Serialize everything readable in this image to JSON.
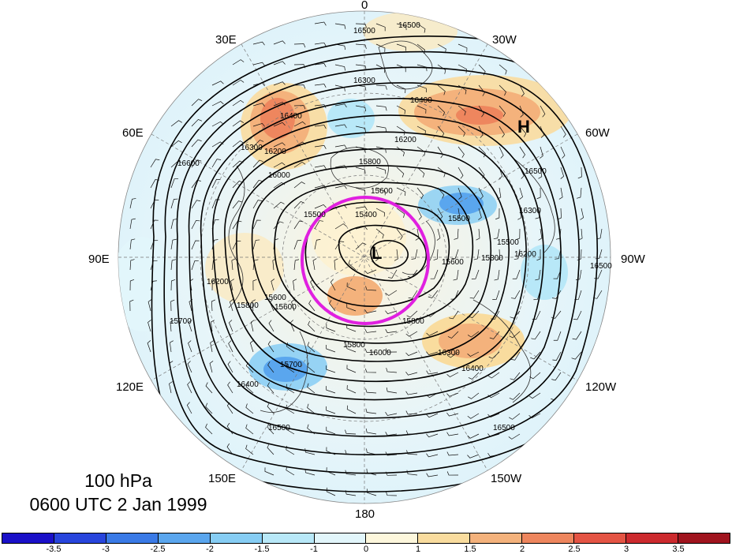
{
  "plot": {
    "level": "100 hPa",
    "valid_time": "0600 UTC 2 Jan 1999"
  },
  "longitude_labels": {
    "lon_0": "0",
    "lon_30e": "30E",
    "lon_30w": "30W",
    "lon_60e": "60E",
    "lon_60w": "60W",
    "lon_90e": "90E",
    "lon_90w": "90W",
    "lon_120e": "120E",
    "lon_120w": "120W",
    "lon_150e": "150E",
    "lon_150w": "150W",
    "lon_180": "180"
  },
  "markers": {
    "low": "L",
    "high": "H",
    "highlight_circle_color": "#e020e0"
  },
  "contour_labels": [
    "16500",
    "16500",
    "16300",
    "16400",
    "16200",
    "16200",
    "16300",
    "16000",
    "16400",
    "15800",
    "15600",
    "15400",
    "15500",
    "15500",
    "15300",
    "15600",
    "15600",
    "16300",
    "16500",
    "16200",
    "16200",
    "15800",
    "15600",
    "15800",
    "15800",
    "15700",
    "16000",
    "16400",
    "16500",
    "16500",
    "16400",
    "16300",
    "16600",
    "16500",
    "15500",
    "15700"
  ],
  "colorbar": {
    "ticks": [
      "-3.5",
      "-3",
      "-2.5",
      "-2",
      "-1.5",
      "-1",
      "0",
      "1",
      "1.5",
      "2",
      "2.5",
      "3",
      "3.5"
    ],
    "colors": [
      "#1a10c8",
      "#2845dc",
      "#3a7ae6",
      "#5aa6ee",
      "#86cdf4",
      "#b8e8f8",
      "#e2f6fb",
      "#fdf7dc",
      "#f9dc9e",
      "#f4b27c",
      "#ee865e",
      "#e45444",
      "#cc2a2e",
      "#a0141e"
    ]
  }
}
